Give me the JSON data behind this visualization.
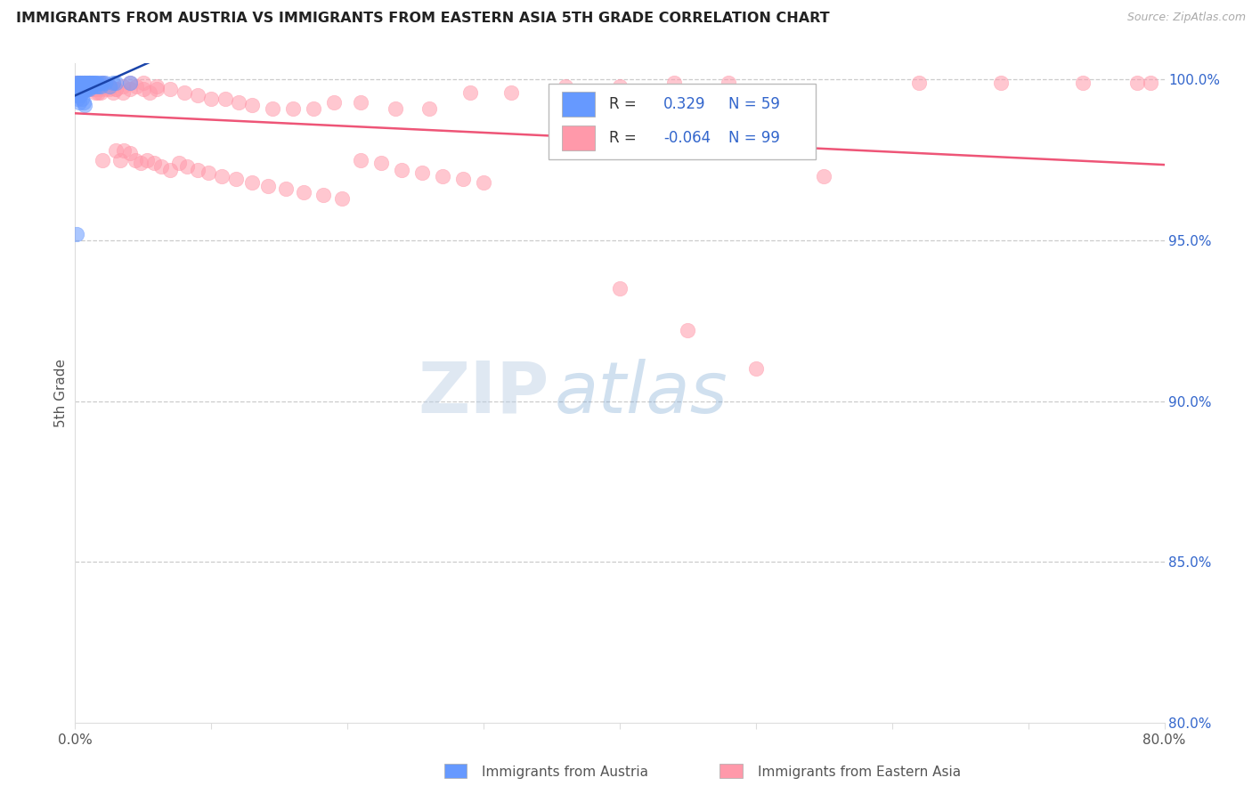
{
  "title": "IMMIGRANTS FROM AUSTRIA VS IMMIGRANTS FROM EASTERN ASIA 5TH GRADE CORRELATION CHART",
  "source": "Source: ZipAtlas.com",
  "ylabel": "5th Grade",
  "xmin": 0.0,
  "xmax": 0.8,
  "ymin": 0.8,
  "ymax": 1.005,
  "color_austria": "#6699ff",
  "color_eastern_asia": "#ff99aa",
  "color_line_austria": "#1a44aa",
  "color_line_eastern_asia": "#ee5577",
  "color_legend_text": "#3366cc",
  "color_title": "#222222",
  "color_source": "#aaaaaa",
  "color_axis_label": "#555555",
  "color_right_tick": "#3366cc",
  "watermark_zip": "ZIP",
  "watermark_atlas": "atlas",
  "austria_x": [
    0.001,
    0.001,
    0.002,
    0.002,
    0.002,
    0.003,
    0.003,
    0.003,
    0.003,
    0.004,
    0.004,
    0.004,
    0.004,
    0.005,
    0.005,
    0.005,
    0.005,
    0.006,
    0.006,
    0.006,
    0.007,
    0.007,
    0.007,
    0.008,
    0.008,
    0.008,
    0.009,
    0.009,
    0.009,
    0.01,
    0.01,
    0.01,
    0.011,
    0.011,
    0.012,
    0.012,
    0.013,
    0.013,
    0.014,
    0.015,
    0.015,
    0.016,
    0.017,
    0.018,
    0.019,
    0.02,
    0.022,
    0.025,
    0.028,
    0.03,
    0.001,
    0.002,
    0.003,
    0.004,
    0.005,
    0.006,
    0.007,
    0.04,
    0.001
  ],
  "austria_y": [
    0.999,
    0.998,
    0.999,
    0.998,
    0.997,
    0.999,
    0.998,
    0.997,
    0.996,
    0.999,
    0.998,
    0.997,
    0.996,
    0.999,
    0.998,
    0.997,
    0.996,
    0.999,
    0.998,
    0.997,
    0.999,
    0.998,
    0.997,
    0.999,
    0.998,
    0.997,
    0.999,
    0.998,
    0.997,
    0.999,
    0.998,
    0.997,
    0.999,
    0.998,
    0.999,
    0.998,
    0.999,
    0.998,
    0.999,
    0.999,
    0.998,
    0.999,
    0.998,
    0.999,
    0.998,
    0.999,
    0.999,
    0.998,
    0.999,
    0.999,
    0.995,
    0.994,
    0.993,
    0.995,
    0.994,
    0.993,
    0.992,
    0.999,
    0.952
  ],
  "eastern_asia_x": [
    0.001,
    0.002,
    0.003,
    0.004,
    0.005,
    0.006,
    0.007,
    0.008,
    0.009,
    0.01,
    0.011,
    0.012,
    0.013,
    0.014,
    0.015,
    0.016,
    0.017,
    0.018,
    0.019,
    0.02,
    0.022,
    0.025,
    0.028,
    0.03,
    0.033,
    0.036,
    0.04,
    0.044,
    0.048,
    0.053,
    0.058,
    0.063,
    0.07,
    0.076,
    0.082,
    0.09,
    0.098,
    0.108,
    0.118,
    0.13,
    0.142,
    0.155,
    0.168,
    0.182,
    0.196,
    0.21,
    0.225,
    0.24,
    0.255,
    0.27,
    0.285,
    0.3,
    0.025,
    0.03,
    0.035,
    0.04,
    0.045,
    0.05,
    0.055,
    0.06,
    0.07,
    0.08,
    0.09,
    0.1,
    0.11,
    0.12,
    0.13,
    0.145,
    0.16,
    0.175,
    0.19,
    0.21,
    0.235,
    0.26,
    0.29,
    0.32,
    0.36,
    0.4,
    0.44,
    0.48,
    0.005,
    0.01,
    0.015,
    0.02,
    0.025,
    0.03,
    0.035,
    0.04,
    0.05,
    0.06,
    0.4,
    0.45,
    0.5,
    0.55,
    0.62,
    0.68,
    0.74,
    0.78,
    0.79
  ],
  "eastern_asia_y": [
    0.999,
    0.999,
    0.998,
    0.999,
    0.998,
    0.997,
    0.999,
    0.998,
    0.997,
    0.999,
    0.998,
    0.997,
    0.998,
    0.997,
    0.996,
    0.997,
    0.996,
    0.997,
    0.996,
    0.975,
    0.997,
    0.997,
    0.996,
    0.978,
    0.975,
    0.978,
    0.977,
    0.975,
    0.974,
    0.975,
    0.974,
    0.973,
    0.972,
    0.974,
    0.973,
    0.972,
    0.971,
    0.97,
    0.969,
    0.968,
    0.967,
    0.966,
    0.965,
    0.964,
    0.963,
    0.975,
    0.974,
    0.972,
    0.971,
    0.97,
    0.969,
    0.968,
    0.998,
    0.997,
    0.998,
    0.997,
    0.998,
    0.997,
    0.996,
    0.997,
    0.997,
    0.996,
    0.995,
    0.994,
    0.994,
    0.993,
    0.992,
    0.991,
    0.991,
    0.991,
    0.993,
    0.993,
    0.991,
    0.991,
    0.996,
    0.996,
    0.998,
    0.998,
    0.999,
    0.999,
    0.999,
    0.998,
    0.997,
    0.999,
    0.998,
    0.997,
    0.996,
    0.999,
    0.999,
    0.998,
    0.935,
    0.922,
    0.91,
    0.97,
    0.999,
    0.999,
    0.999,
    0.999,
    0.999
  ]
}
